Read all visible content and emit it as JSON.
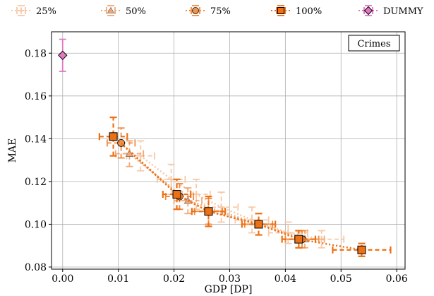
{
  "chart_data": {
    "type": "scatter",
    "xlabel": "GDP [DP]",
    "ylabel": "MAE",
    "xlim": [
      -0.002,
      0.0615
    ],
    "ylim": [
      0.079,
      0.19
    ],
    "xticks": [
      0.0,
      0.01,
      0.02,
      0.03,
      0.04,
      0.05,
      0.06
    ],
    "xtick_labels": [
      "0.00",
      "0.01",
      "0.02",
      "0.03",
      "0.04",
      "0.05",
      "0.06"
    ],
    "yticks": [
      0.08,
      0.1,
      0.12,
      0.14,
      0.16,
      0.18
    ],
    "ytick_labels": [
      "0.08",
      "0.10",
      "0.12",
      "0.14",
      "0.16",
      "0.18"
    ],
    "grid": true,
    "legend_position": "top, outside plot",
    "annotation": "Crimes",
    "series": [
      {
        "name": "25%",
        "marker": "plus",
        "color": "#f7c9a6",
        "points": [
          {
            "x": 0.014,
            "y": 0.132,
            "xerr": 0.0025,
            "yerr": 0.007
          },
          {
            "x": 0.0195,
            "y": 0.121,
            "xerr": 0.0025,
            "yerr": 0.007
          },
          {
            "x": 0.024,
            "y": 0.114,
            "xerr": 0.0025,
            "yerr": 0.007
          },
          {
            "x": 0.0285,
            "y": 0.108,
            "xerr": 0.003,
            "yerr": 0.007
          },
          {
            "x": 0.034,
            "y": 0.102,
            "xerr": 0.003,
            "yerr": 0.006
          },
          {
            "x": 0.0405,
            "y": 0.096,
            "xerr": 0.0035,
            "yerr": 0.005
          },
          {
            "x": 0.0465,
            "y": 0.093,
            "xerr": 0.004,
            "yerr": 0.004
          }
        ]
      },
      {
        "name": "50%",
        "marker": "triangle",
        "color": "#f3a877",
        "points": [
          {
            "x": 0.012,
            "y": 0.133,
            "xerr": 0.0025,
            "yerr": 0.006
          },
          {
            "x": 0.0225,
            "y": 0.111,
            "xerr": 0.0025,
            "yerr": 0.006
          },
          {
            "x": 0.0435,
            "y": 0.093,
            "xerr": 0.0035,
            "yerr": 0.004
          }
        ]
      },
      {
        "name": "75%",
        "marker": "circle",
        "color": "#f08a3e",
        "points": [
          {
            "x": 0.0105,
            "y": 0.138,
            "xerr": 0.0025,
            "yerr": 0.007
          },
          {
            "x": 0.021,
            "y": 0.113,
            "xerr": 0.0025,
            "yerr": 0.006
          },
          {
            "x": 0.0262,
            "y": 0.106,
            "xerr": 0.0025,
            "yerr": 0.006
          },
          {
            "x": 0.0352,
            "y": 0.1,
            "xerr": 0.0025,
            "yerr": 0.005
          },
          {
            "x": 0.043,
            "y": 0.093,
            "xerr": 0.003,
            "yerr": 0.004
          }
        ]
      },
      {
        "name": "100%",
        "marker": "square",
        "color": "#ec7014",
        "points": [
          {
            "x": 0.0091,
            "y": 0.141,
            "xerr": 0.0025,
            "yerr": 0.009
          },
          {
            "x": 0.0205,
            "y": 0.114,
            "xerr": 0.0025,
            "yerr": 0.007
          },
          {
            "x": 0.0262,
            "y": 0.106,
            "xerr": 0.003,
            "yerr": 0.007
          },
          {
            "x": 0.0352,
            "y": 0.1,
            "xerr": 0.003,
            "yerr": 0.005
          },
          {
            "x": 0.0424,
            "y": 0.093,
            "xerr": 0.003,
            "yerr": 0.004
          },
          {
            "x": 0.0537,
            "y": 0.088,
            "xerr": 0.0052,
            "yerr": 0.003
          }
        ]
      },
      {
        "name": "DUMMY",
        "marker": "diamond",
        "color": "#e377c2",
        "points": [
          {
            "x": 0.0,
            "y": 0.179,
            "xerr": 0.0,
            "yerr": 0.0075
          }
        ]
      }
    ]
  }
}
